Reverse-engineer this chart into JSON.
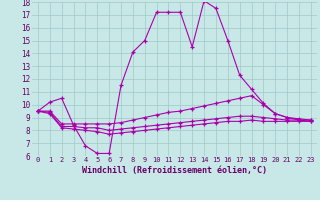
{
  "bg_color": "#c8e8e8",
  "grid_color": "#a0c8c8",
  "line_color": "#aa00aa",
  "xlim": [
    -0.5,
    23.5
  ],
  "ylim": [
    6,
    18
  ],
  "yticks": [
    6,
    7,
    8,
    9,
    10,
    11,
    12,
    13,
    14,
    15,
    16,
    17,
    18
  ],
  "xticks": [
    0,
    1,
    2,
    3,
    4,
    5,
    6,
    7,
    8,
    9,
    10,
    11,
    12,
    13,
    14,
    15,
    16,
    17,
    18,
    19,
    20,
    21,
    22,
    23
  ],
  "series1_x": [
    0,
    1,
    2,
    3,
    4,
    5,
    6,
    7,
    8,
    9,
    10,
    11,
    12,
    13,
    14,
    15,
    16,
    17,
    18,
    19,
    20,
    21,
    22,
    23
  ],
  "series1_y": [
    9.5,
    10.2,
    10.5,
    8.4,
    6.8,
    6.2,
    6.2,
    11.5,
    14.1,
    15.0,
    17.2,
    17.2,
    17.2,
    14.5,
    18.1,
    17.5,
    15.0,
    12.3,
    11.2,
    10.1,
    9.3,
    9.0,
    8.8,
    8.8
  ],
  "series2_x": [
    0,
    1,
    2,
    3,
    4,
    5,
    6,
    7,
    8,
    9,
    10,
    11,
    12,
    13,
    14,
    15,
    16,
    17,
    18,
    19,
    20,
    21,
    22,
    23
  ],
  "series2_y": [
    9.5,
    9.5,
    8.5,
    8.5,
    8.5,
    8.5,
    8.5,
    8.6,
    8.8,
    9.0,
    9.2,
    9.4,
    9.5,
    9.7,
    9.9,
    10.1,
    10.3,
    10.5,
    10.7,
    10.0,
    9.3,
    9.0,
    8.9,
    8.8
  ],
  "series3_x": [
    0,
    1,
    2,
    3,
    4,
    5,
    6,
    7,
    8,
    9,
    10,
    11,
    12,
    13,
    14,
    15,
    16,
    17,
    18,
    19,
    20,
    21,
    22,
    23
  ],
  "series3_y": [
    9.5,
    9.4,
    8.3,
    8.3,
    8.2,
    8.2,
    8.0,
    8.1,
    8.2,
    8.3,
    8.4,
    8.5,
    8.6,
    8.7,
    8.8,
    8.9,
    9.0,
    9.1,
    9.1,
    9.0,
    8.9,
    8.8,
    8.8,
    8.7
  ],
  "series4_x": [
    0,
    1,
    2,
    3,
    4,
    5,
    6,
    7,
    8,
    9,
    10,
    11,
    12,
    13,
    14,
    15,
    16,
    17,
    18,
    19,
    20,
    21,
    22,
    23
  ],
  "series4_y": [
    9.5,
    9.3,
    8.2,
    8.1,
    8.0,
    7.9,
    7.7,
    7.8,
    7.9,
    8.0,
    8.1,
    8.2,
    8.3,
    8.4,
    8.5,
    8.6,
    8.7,
    8.7,
    8.8,
    8.7,
    8.7,
    8.7,
    8.7,
    8.7
  ],
  "xlabel": "Windchill (Refroidissement éolien,°C)",
  "xlabel_fontsize": 6.0,
  "tick_fontsize": 5.0,
  "tick_color": "#660066"
}
